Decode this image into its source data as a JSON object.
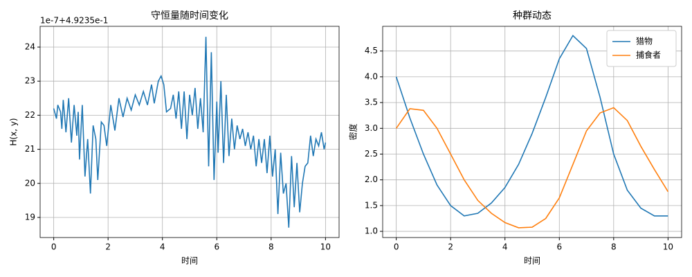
{
  "chart_data": [
    {
      "type": "line",
      "title": "守恒量随时间变化",
      "xlabel": "时间",
      "ylabel": "H(x, y)",
      "offset_text": "1e-7+4.9235e-1",
      "xlim": [
        -0.5,
        10.5
      ],
      "xticks": [
        0,
        2,
        4,
        6,
        8,
        10
      ],
      "ylim": [
        18.41,
        24.61
      ],
      "yticks": [
        19,
        20,
        21,
        22,
        23,
        24
      ],
      "grid": true,
      "series": [
        {
          "name": "H(x, y)",
          "color": "#1f77b4",
          "x": [
            0,
            0.1,
            0.15,
            0.25,
            0.3,
            0.35,
            0.45,
            0.55,
            0.65,
            0.75,
            0.85,
            0.9,
            0.95,
            1.05,
            1.15,
            1.25,
            1.35,
            1.45,
            1.55,
            1.62,
            1.75,
            1.85,
            1.95,
            2.1,
            2.25,
            2.4,
            2.55,
            2.7,
            2.85,
            3.0,
            3.15,
            3.3,
            3.45,
            3.6,
            3.7,
            3.85,
            3.95,
            4.05,
            4.15,
            4.3,
            4.4,
            4.5,
            4.6,
            4.7,
            4.8,
            4.9,
            5.0,
            5.1,
            5.2,
            5.3,
            5.4,
            5.5,
            5.6,
            5.7,
            5.8,
            5.9,
            6.0,
            6.05,
            6.15,
            6.25,
            6.35,
            6.45,
            6.55,
            6.65,
            6.75,
            6.85,
            6.95,
            7.05,
            7.15,
            7.25,
            7.35,
            7.45,
            7.55,
            7.65,
            7.75,
            7.85,
            7.95,
            8.05,
            8.15,
            8.25,
            8.35,
            8.45,
            8.55,
            8.65,
            8.75,
            8.85,
            8.95,
            9.05,
            9.15,
            9.25,
            9.35,
            9.45,
            9.55,
            9.65,
            9.75,
            9.85,
            9.95,
            10.0
          ],
          "values": [
            22.2,
            21.9,
            22.3,
            22.1,
            21.6,
            22.45,
            21.5,
            22.5,
            21.2,
            22.3,
            21.4,
            22.1,
            20.7,
            22.3,
            20.2,
            21.3,
            19.7,
            21.7,
            21.3,
            20.1,
            21.8,
            21.7,
            21.1,
            22.3,
            21.55,
            22.5,
            21.95,
            22.5,
            22.15,
            22.6,
            22.3,
            22.7,
            22.3,
            22.9,
            22.35,
            23.0,
            23.15,
            22.9,
            22.1,
            22.2,
            22.6,
            21.9,
            22.7,
            21.6,
            22.7,
            21.3,
            22.6,
            22.0,
            22.8,
            21.6,
            22.5,
            21.5,
            24.3,
            20.5,
            23.85,
            20.1,
            22.4,
            20.9,
            23.0,
            20.6,
            22.6,
            20.8,
            21.9,
            21.0,
            21.7,
            21.3,
            21.6,
            21.1,
            21.5,
            21.0,
            21.4,
            20.5,
            21.3,
            20.6,
            21.3,
            20.3,
            21.4,
            20.2,
            21.0,
            19.1,
            20.9,
            19.7,
            20.0,
            18.7,
            20.8,
            19.3,
            20.6,
            19.15,
            20.0,
            20.5,
            20.6,
            21.4,
            20.8,
            21.3,
            21.1,
            21.5,
            21.0,
            21.2
          ]
        }
      ]
    },
    {
      "type": "line",
      "title": "种群动态",
      "xlabel": "时间",
      "ylabel": "密度",
      "xlim": [
        -0.5,
        10.5
      ],
      "xticks": [
        0,
        2,
        4,
        6,
        8,
        10
      ],
      "ylim": [
        0.88,
        4.98
      ],
      "yticks": [
        {
          "value": 1,
          "label": "1.0"
        },
        1.5,
        {
          "value": 2,
          "label": "2.0"
        },
        2.5,
        {
          "value": 3,
          "label": "3.0"
        },
        3.5,
        {
          "value": 4,
          "label": "4.0"
        },
        4.5
      ],
      "grid": true,
      "legend": "upper-right",
      "series": [
        {
          "name": "猎物",
          "color": "#1f77b4",
          "x": [
            0,
            0.5,
            1,
            1.5,
            2,
            2.5,
            3,
            3.5,
            4,
            4.5,
            5,
            5.5,
            6,
            6.5,
            7,
            7.5,
            8,
            8.5,
            9,
            9.5,
            10
          ],
          "values": [
            4.0,
            3.2,
            2.5,
            1.9,
            1.5,
            1.3,
            1.35,
            1.55,
            1.85,
            2.3,
            2.9,
            3.6,
            4.35,
            4.8,
            4.55,
            3.6,
            2.5,
            1.8,
            1.45,
            1.3,
            1.3
          ]
        },
        {
          "name": "捕食者",
          "color": "#ff7f0e",
          "x": [
            0,
            0.5,
            1,
            1.5,
            2,
            2.5,
            3,
            3.5,
            4,
            4.5,
            5,
            5.5,
            6,
            6.5,
            7,
            7.5,
            8,
            8.5,
            9,
            9.5,
            10
          ],
          "values": [
            3.0,
            3.38,
            3.35,
            3.0,
            2.5,
            2.0,
            1.6,
            1.35,
            1.17,
            1.07,
            1.08,
            1.25,
            1.65,
            2.3,
            2.95,
            3.3,
            3.4,
            3.15,
            2.65,
            2.2,
            1.77
          ]
        }
      ]
    }
  ]
}
